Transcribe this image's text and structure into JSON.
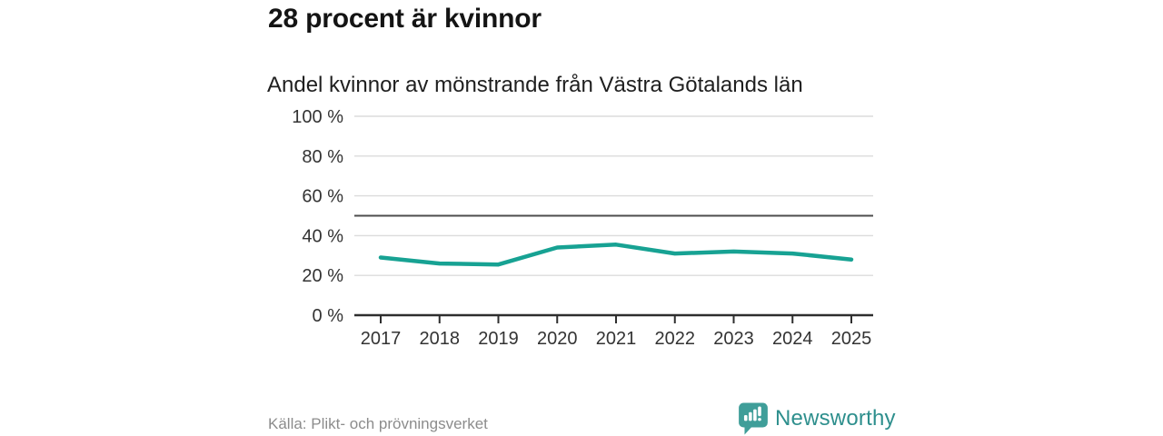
{
  "title": "28 procent är kvinnor",
  "subtitle": "Andel kvinnor av mönstrande från Västra Götalands län",
  "footer": {
    "source": "Källa: Plikt- och prövningsverket",
    "brand": "Newsworthy",
    "brand_icon": "bar-chart-speech-bubble-icon"
  },
  "colors": {
    "line": "#17a293",
    "grid": "#dcdcdc",
    "reference_line": "#4d4d4d",
    "axis": "#2e2e2e",
    "tick_text": "#333333",
    "title_text": "#141414",
    "muted_text": "#8c8c8c",
    "brand_icon": "#3f9e99",
    "brand_text": "#2e8f8d"
  },
  "chart_data": {
    "type": "line",
    "title": "Andel kvinnor av mönstrande från Västra Götalands län",
    "x": [
      "2017",
      "2018",
      "2019",
      "2020",
      "2021",
      "2022",
      "2023",
      "2024",
      "2025"
    ],
    "series": [
      {
        "name": "Andel kvinnor av mönstrande",
        "color": "#17a293",
        "values": [
          29,
          26,
          25.5,
          34,
          35.5,
          31,
          32,
          31,
          28
        ]
      }
    ],
    "xlabel": "",
    "ylabel": "",
    "ylim": [
      0,
      100
    ],
    "yticks": [
      0,
      20,
      40,
      60,
      80,
      100
    ],
    "ytick_suffix": " %",
    "reference_line": 50,
    "grid": true,
    "legend": "none"
  }
}
